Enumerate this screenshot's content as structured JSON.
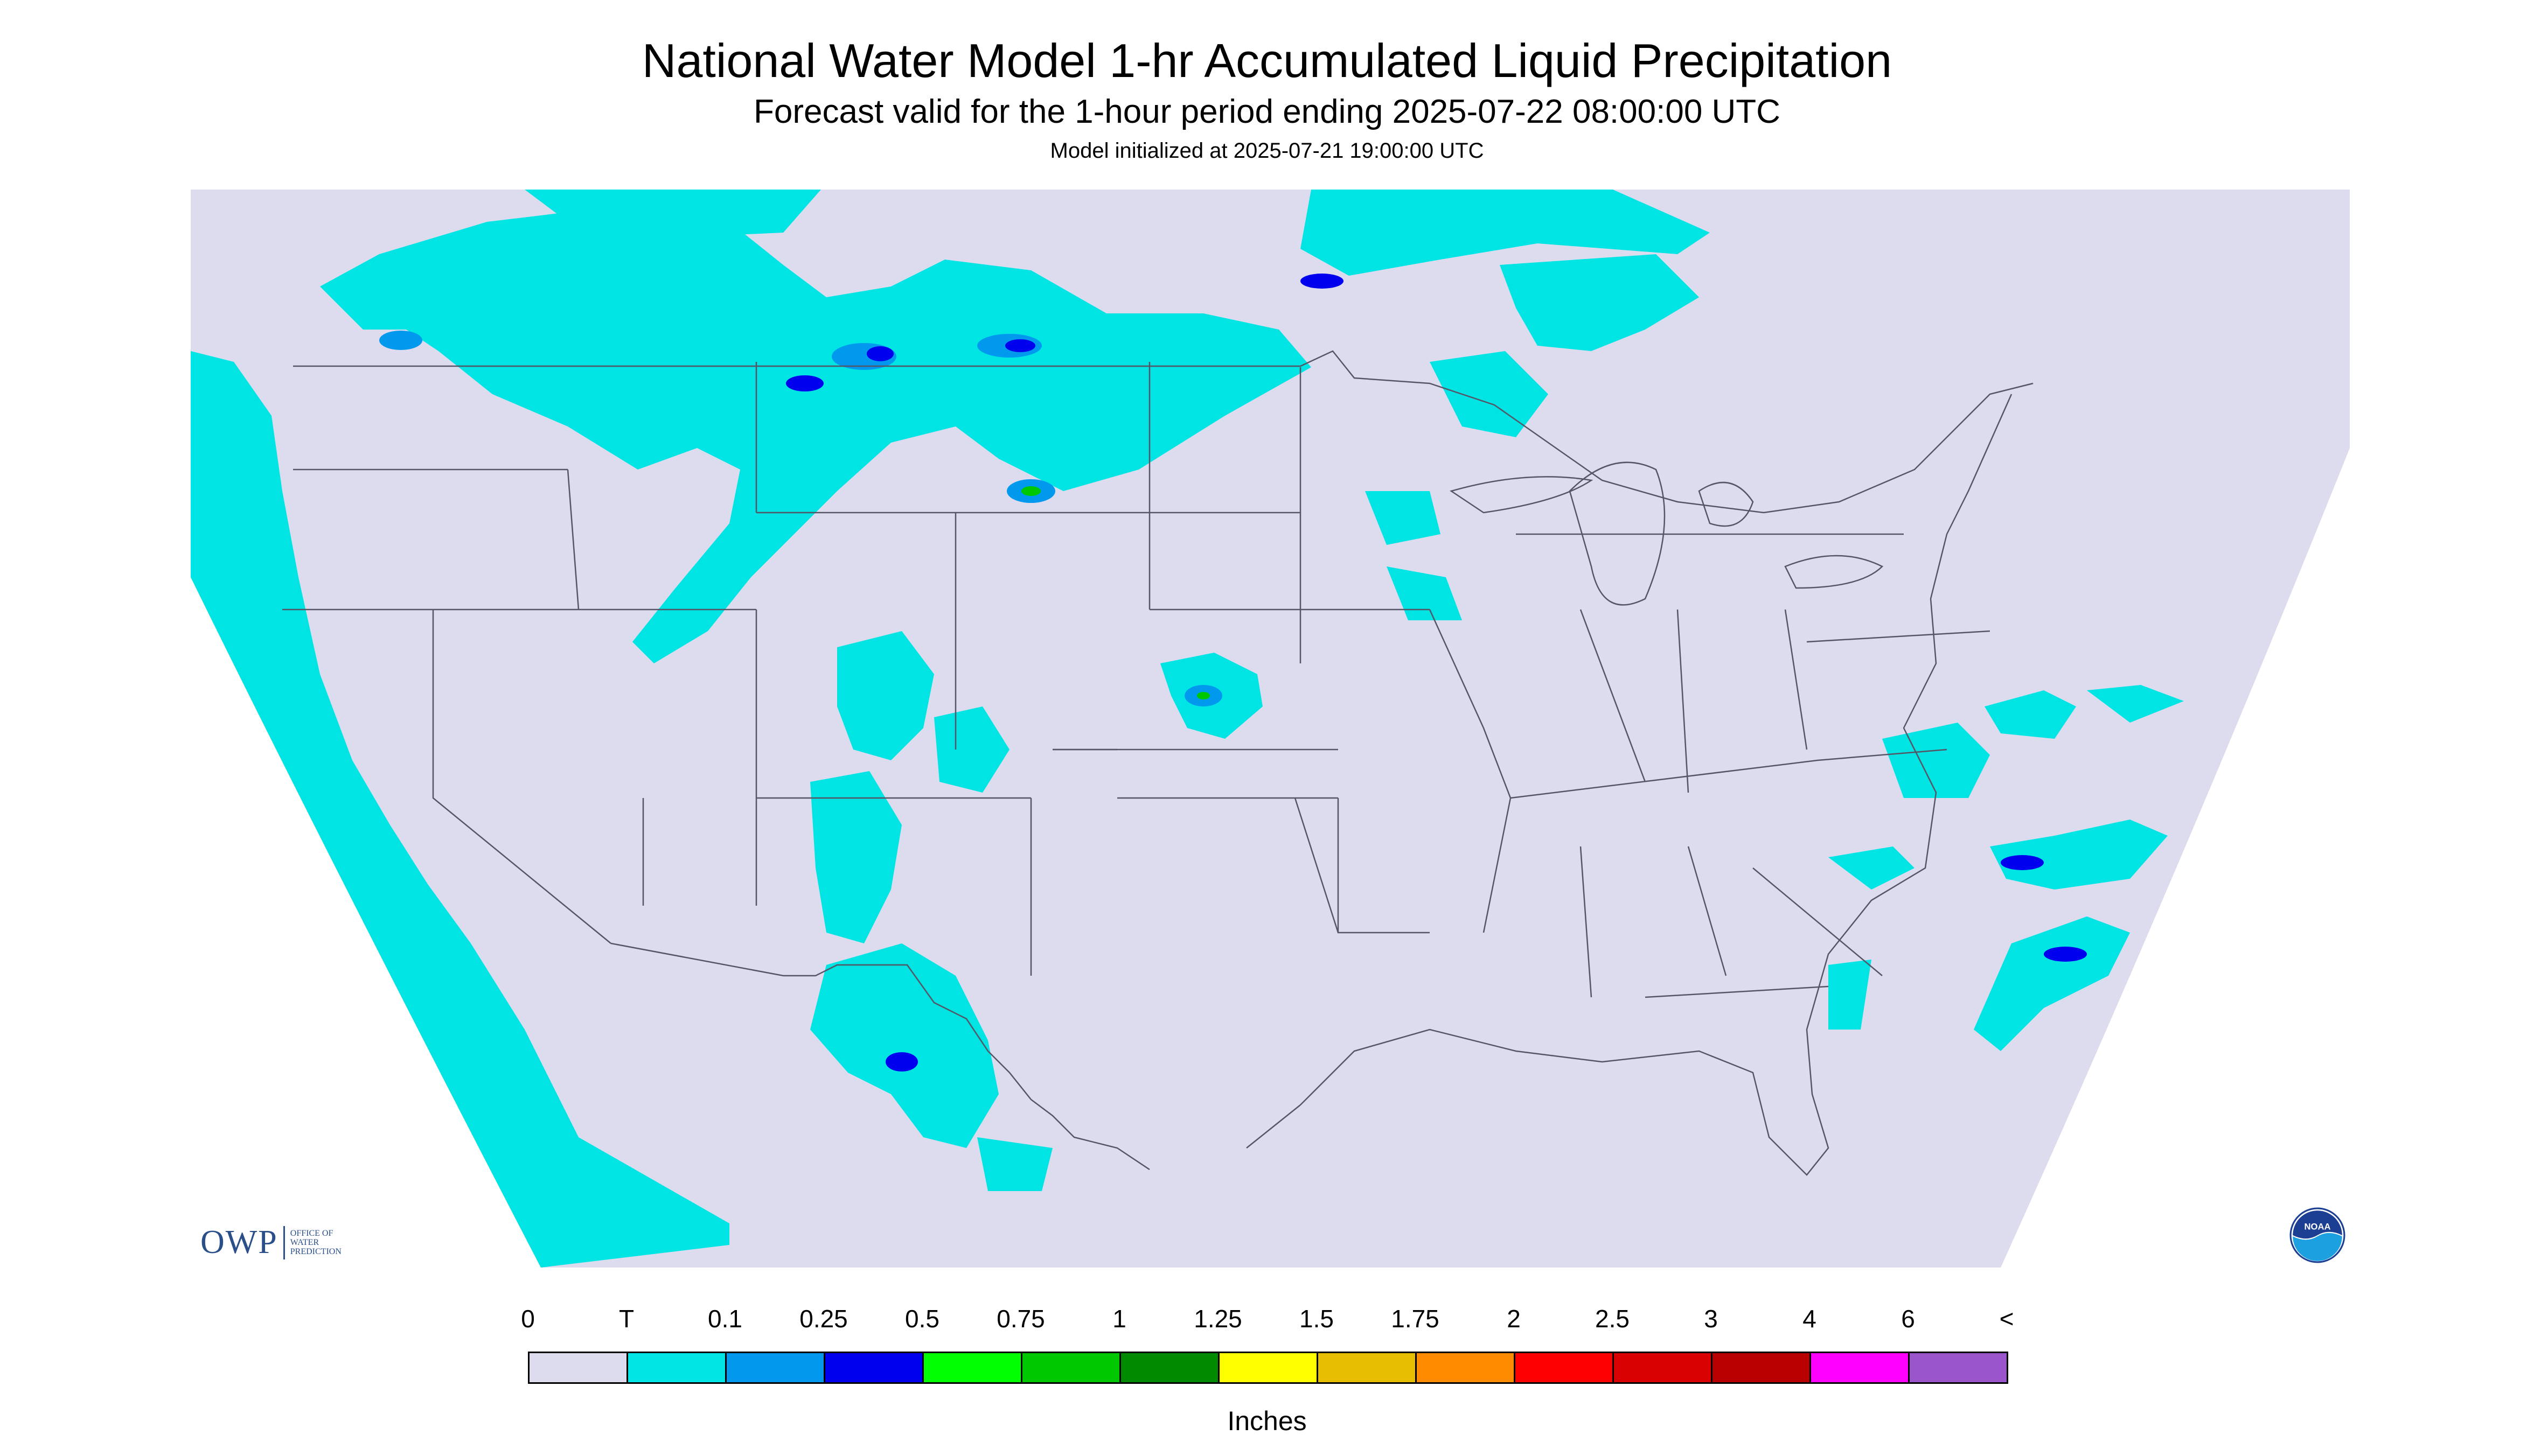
{
  "title": "National Water Model 1-hr Accumulated Liquid Precipitation",
  "subtitle": "Forecast valid for the 1-hour period ending 2025-07-22 08:00:00 UTC",
  "init_text": "Model initialized at 2025-07-21 19:00:00 UTC",
  "logo": {
    "abbrev": "OWP",
    "lines": [
      "OFFICE OF",
      "WATER",
      "PREDICTION"
    ],
    "agency_seal": "NOAA",
    "seal_icon": "noaa-seal-icon"
  },
  "colors": {
    "background": "#dcdcee",
    "state_lines": "#555566"
  },
  "legend": {
    "units": "Inches",
    "labels": [
      "0",
      "T",
      "0.1",
      "0.25",
      "0.5",
      "0.75",
      "1",
      "1.25",
      "1.5",
      "1.75",
      "2",
      "2.5",
      "3",
      "4",
      "6",
      "<"
    ],
    "colors": [
      "#dcdcee",
      "#00e4e4",
      "#0099ee",
      "#0000ee",
      "#00ff00",
      "#00c800",
      "#008a00",
      "#ffff00",
      "#e6bd00",
      "#ff8c00",
      "#ff0000",
      "#d80000",
      "#b80000",
      "#ff00ff",
      "#9955c9"
    ]
  }
}
